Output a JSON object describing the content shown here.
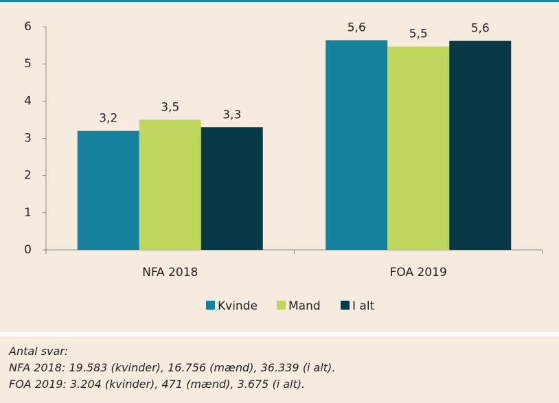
{
  "chart_data": {
    "type": "bar",
    "categories": [
      "NFA 2018",
      "FOA 2019"
    ],
    "series": [
      {
        "name": "Kvinde",
        "color": "#14819d",
        "values": [
          3.2,
          5.64
        ],
        "value_labels": [
          "3,2",
          "5,6"
        ]
      },
      {
        "name": "Mand",
        "color": "#bdd65b",
        "values": [
          3.5,
          5.47
        ],
        "value_labels": [
          "3,5",
          "5,5"
        ]
      },
      {
        "name": "I alt",
        "color": "#073845",
        "values": [
          3.3,
          5.62
        ],
        "value_labels": [
          "3,3",
          "5,6"
        ]
      }
    ],
    "ylim": [
      0,
      6
    ],
    "yticks": [
      0,
      1,
      2,
      3,
      4,
      5,
      6
    ],
    "grid": false,
    "legend": "bottom",
    "notes": [
      "Antal svar:",
      "NFA 2018: 19.583 (kvinder), 16.756 (mænd), 36.339 (i alt).",
      "FOA 2019: 3.204 (kvinder), 471 (mænd), 3.675 (i alt)."
    ]
  }
}
